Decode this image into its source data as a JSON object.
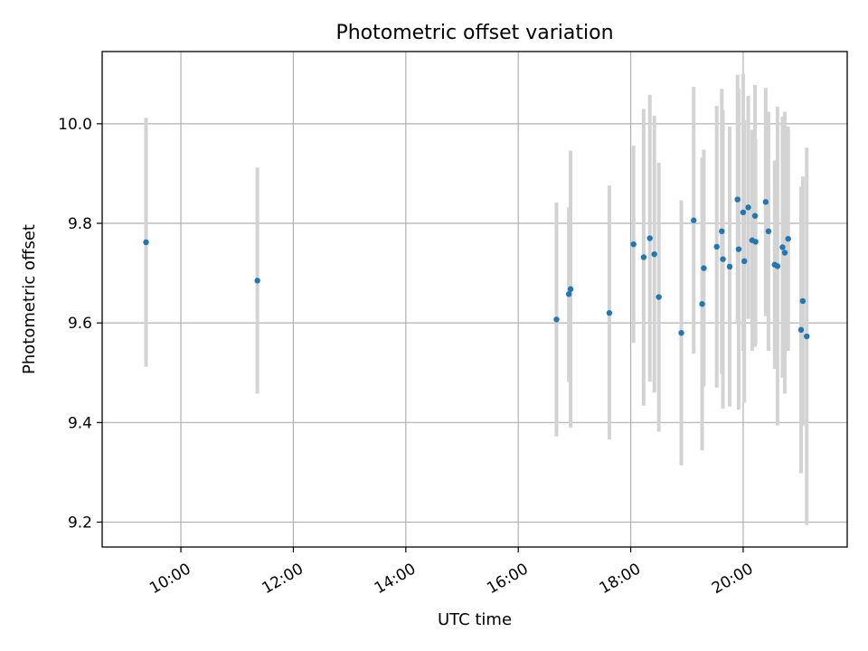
{
  "chart_data": {
    "type": "scatter",
    "title": "Photometric offset variation",
    "xlabel": "UTC time",
    "ylabel": "Photometric offset",
    "x_unit": "hours (UTC)",
    "xlim": [
      8.6,
      21.85
    ],
    "ylim": [
      9.15,
      10.145
    ],
    "x_ticks": [
      {
        "value": 10,
        "label": "10:00"
      },
      {
        "value": 12,
        "label": "12:00"
      },
      {
        "value": 14,
        "label": "14:00"
      },
      {
        "value": 16,
        "label": "16:00"
      },
      {
        "value": 18,
        "label": "18:00"
      },
      {
        "value": 20,
        "label": "20:00"
      }
    ],
    "y_ticks": [
      {
        "value": 9.2,
        "label": "9.2"
      },
      {
        "value": 9.4,
        "label": "9.4"
      },
      {
        "value": 9.6,
        "label": "9.6"
      },
      {
        "value": 9.8,
        "label": "9.8"
      },
      {
        "value": 10.0,
        "label": "10.0"
      }
    ],
    "grid": true,
    "marker_color": "#1f77b4",
    "errorbar_color": "#d3d3d3",
    "points": [
      {
        "x": 9.38,
        "y": 9.762,
        "lo": 9.512,
        "hi": 10.012
      },
      {
        "x": 11.36,
        "y": 9.685,
        "lo": 9.458,
        "hi": 9.912
      },
      {
        "x": 16.68,
        "y": 9.607,
        "lo": 9.372,
        "hi": 9.842
      },
      {
        "x": 16.9,
        "y": 9.658,
        "lo": 9.482,
        "hi": 9.832
      },
      {
        "x": 16.93,
        "y": 9.668,
        "lo": 9.39,
        "hi": 9.946
      },
      {
        "x": 17.62,
        "y": 9.62,
        "lo": 9.366,
        "hi": 9.876
      },
      {
        "x": 18.05,
        "y": 9.758,
        "lo": 9.56,
        "hi": 9.956
      },
      {
        "x": 18.23,
        "y": 9.732,
        "lo": 9.434,
        "hi": 10.03
      },
      {
        "x": 18.34,
        "y": 9.77,
        "lo": 9.482,
        "hi": 10.058
      },
      {
        "x": 18.42,
        "y": 9.738,
        "lo": 9.46,
        "hi": 10.016
      },
      {
        "x": 18.5,
        "y": 9.652,
        "lo": 9.382,
        "hi": 9.922
      },
      {
        "x": 18.9,
        "y": 9.58,
        "lo": 9.314,
        "hi": 9.846
      },
      {
        "x": 19.12,
        "y": 9.806,
        "lo": 9.538,
        "hi": 10.074
      },
      {
        "x": 19.27,
        "y": 9.638,
        "lo": 9.344,
        "hi": 9.932
      },
      {
        "x": 19.3,
        "y": 9.71,
        "lo": 9.472,
        "hi": 9.948
      },
      {
        "x": 19.53,
        "y": 9.753,
        "lo": 9.47,
        "hi": 10.036
      },
      {
        "x": 19.62,
        "y": 9.784,
        "lo": 9.498,
        "hi": 10.07
      },
      {
        "x": 19.64,
        "y": 9.728,
        "lo": 9.428,
        "hi": 10.028
      },
      {
        "x": 19.76,
        "y": 9.713,
        "lo": 9.432,
        "hi": 9.994
      },
      {
        "x": 19.9,
        "y": 9.848,
        "lo": 9.598,
        "hi": 10.098
      },
      {
        "x": 19.92,
        "y": 9.748,
        "lo": 9.426,
        "hi": 10.07
      },
      {
        "x": 20.0,
        "y": 9.822,
        "lo": 9.544,
        "hi": 10.1
      },
      {
        "x": 20.02,
        "y": 9.724,
        "lo": 9.44,
        "hi": 10.008
      },
      {
        "x": 20.09,
        "y": 9.832,
        "lo": 9.608,
        "hi": 10.056
      },
      {
        "x": 20.16,
        "y": 9.766,
        "lo": 9.544,
        "hi": 9.988
      },
      {
        "x": 20.21,
        "y": 9.815,
        "lo": 9.552,
        "hi": 10.078
      },
      {
        "x": 20.22,
        "y": 9.763,
        "lo": 9.556,
        "hi": 9.97
      },
      {
        "x": 20.4,
        "y": 9.843,
        "lo": 9.614,
        "hi": 10.072
      },
      {
        "x": 20.45,
        "y": 9.784,
        "lo": 9.544,
        "hi": 10.024
      },
      {
        "x": 20.56,
        "y": 9.717,
        "lo": 9.508,
        "hi": 9.926
      },
      {
        "x": 20.61,
        "y": 9.714,
        "lo": 9.394,
        "hi": 10.034
      },
      {
        "x": 20.7,
        "y": 9.752,
        "lo": 9.49,
        "hi": 10.014
      },
      {
        "x": 20.74,
        "y": 9.741,
        "lo": 9.458,
        "hi": 10.024
      },
      {
        "x": 20.8,
        "y": 9.769,
        "lo": 9.544,
        "hi": 9.994
      },
      {
        "x": 21.03,
        "y": 9.586,
        "lo": 9.298,
        "hi": 9.874
      },
      {
        "x": 21.06,
        "y": 9.644,
        "lo": 9.394,
        "hi": 9.894
      },
      {
        "x": 21.13,
        "y": 9.573,
        "lo": 9.194,
        "hi": 9.952
      }
    ]
  }
}
